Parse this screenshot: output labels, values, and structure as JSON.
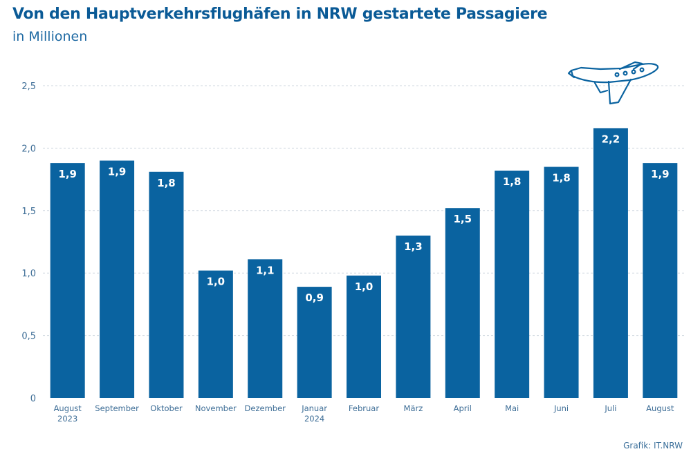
{
  "header": {
    "title": "Von den Hauptverkehrsflughäfen in NRW gestartete Passagiere",
    "subtitle": "in Millionen"
  },
  "footer": {
    "source": "Grafik: IT.NRW"
  },
  "icon": {
    "name": "airplane-icon"
  },
  "colors": {
    "bar": "#0a63a0",
    "title": "#0a5a96",
    "grid": "#cfd7df",
    "label": "#3d6d96"
  },
  "chart_data": {
    "type": "bar",
    "categories": [
      "August 2023",
      "September",
      "Oktober",
      "November",
      "Dezember",
      "Januar 2024",
      "Februar",
      "März",
      "April",
      "Mai",
      "Juni",
      "Juli",
      "August"
    ],
    "category_lines": [
      [
        "August",
        "2023"
      ],
      [
        "September"
      ],
      [
        "Oktober"
      ],
      [
        "November"
      ],
      [
        "Dezember"
      ],
      [
        "Januar",
        "2024"
      ],
      [
        "Februar"
      ],
      [
        "März"
      ],
      [
        "April"
      ],
      [
        "Mai"
      ],
      [
        "Juni"
      ],
      [
        "Juli"
      ],
      [
        "August"
      ]
    ],
    "values": [
      1.88,
      1.9,
      1.81,
      1.02,
      1.11,
      0.89,
      0.98,
      1.3,
      1.52,
      1.82,
      1.85,
      2.16,
      1.88
    ],
    "data_labels": [
      "1,9",
      "1,9",
      "1,8",
      "1,0",
      "1,1",
      "0,9",
      "1,0",
      "1,3",
      "1,5",
      "1,8",
      "1,8",
      "2,2",
      "1,9"
    ],
    "yticks": [
      0,
      0.5,
      1.0,
      1.5,
      2.0,
      2.5
    ],
    "ytick_labels": [
      "0",
      "0,5",
      "1,0",
      "1,5",
      "2,0",
      "2,5"
    ],
    "ylim": [
      0,
      2.5
    ],
    "grid": true
  }
}
